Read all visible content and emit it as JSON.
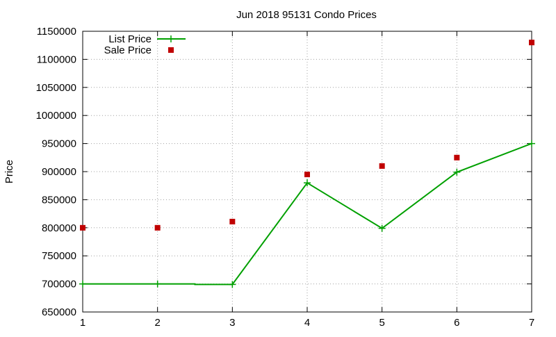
{
  "chart_data": {
    "type": "line",
    "title": "Jun 2018 95131 Condo Prices",
    "xlabel": "",
    "ylabel": "Price",
    "xlim": [
      1,
      7
    ],
    "ylim": [
      650000,
      1150000
    ],
    "x_ticks": [
      1,
      2,
      3,
      4,
      5,
      6,
      7
    ],
    "y_ticks": [
      650000,
      700000,
      750000,
      800000,
      850000,
      900000,
      950000,
      1000000,
      1050000,
      1100000,
      1150000
    ],
    "grid": true,
    "legend_position": "top-left",
    "series": [
      {
        "name": "List Price",
        "style": "line+cross",
        "color": "#00a000",
        "points": [
          {
            "x": 1,
            "y": 700000
          },
          {
            "x": 2,
            "y": 700000
          },
          {
            "x": 2.5,
            "y": 700000
          },
          {
            "x": 2.5,
            "y": 699000
          },
          {
            "x": 3,
            "y": 699000
          },
          {
            "x": 4,
            "y": 880000
          },
          {
            "x": 5,
            "y": 799000
          },
          {
            "x": 6,
            "y": 899000
          },
          {
            "x": 7,
            "y": 950000
          }
        ],
        "markers": [
          {
            "x": 1,
            "y": 700000
          },
          {
            "x": 2,
            "y": 700000
          },
          {
            "x": 3,
            "y": 699000
          },
          {
            "x": 4,
            "y": 880000
          },
          {
            "x": 5,
            "y": 799000
          },
          {
            "x": 6,
            "y": 899000
          },
          {
            "x": 7,
            "y": 950000
          }
        ]
      },
      {
        "name": "Sale Price",
        "style": "square",
        "color": "#c00000",
        "points": [
          {
            "x": 1,
            "y": 800000
          },
          {
            "x": 2,
            "y": 800000
          },
          {
            "x": 3,
            "y": 811000
          },
          {
            "x": 4,
            "y": 895000
          },
          {
            "x": 5,
            "y": 910000
          },
          {
            "x": 6,
            "y": 925000
          },
          {
            "x": 7,
            "y": 1130000
          }
        ]
      }
    ]
  }
}
